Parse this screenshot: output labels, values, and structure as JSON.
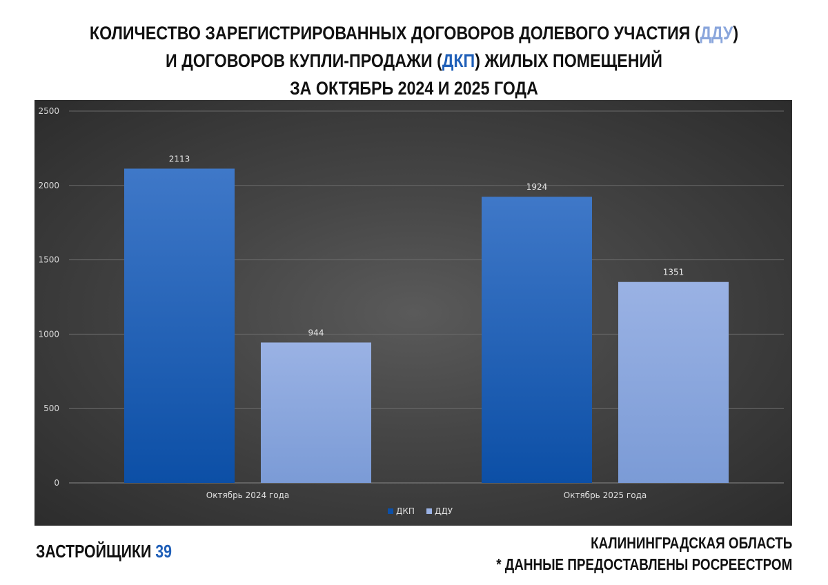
{
  "header": {
    "line1_prefix": "Количество зарегистрированных договоров долевого участия (",
    "line1_abbr": "ДДУ",
    "line1_suffix": ")",
    "line2_prefix": "и договоров купли-продажи (",
    "line2_abbr": "ДКП",
    "line2_suffix": ") жилых помещений",
    "line3": "за октябрь 2024 и 2025 года"
  },
  "footer": {
    "brand_text": "ЗАСТРОЙЩИКИ",
    "brand_number": "39",
    "region": "КАЛИНИНГРАДСКАЯ ОБЛАСТЬ",
    "source_note": "* ДАННЫЕ ПРЕДОСТАВЛЕНЫ РОСРЕЕСТРОМ"
  },
  "colors": {
    "dkp_top": "#3f78c8",
    "dkp_bottom": "#0c4fa6",
    "ddu_top": "#9ab2e4",
    "ddu_bottom": "#7b9bd6",
    "accent_blue": "#1f5fb8",
    "accent_light": "#8aa6dc"
  },
  "chart_data": {
    "type": "bar",
    "categories": [
      "Октябрь 2024 года",
      "Октябрь 2025 года"
    ],
    "series": [
      {
        "name": "ДКП",
        "values": [
          2113,
          1924
        ]
      },
      {
        "name": "ДДУ",
        "values": [
          944,
          1351
        ]
      }
    ],
    "ylim": [
      0,
      2500
    ],
    "yticks": [
      0,
      500,
      1000,
      1500,
      2000,
      2500
    ],
    "grid": true,
    "legend_position": "bottom",
    "data_labels": true
  }
}
